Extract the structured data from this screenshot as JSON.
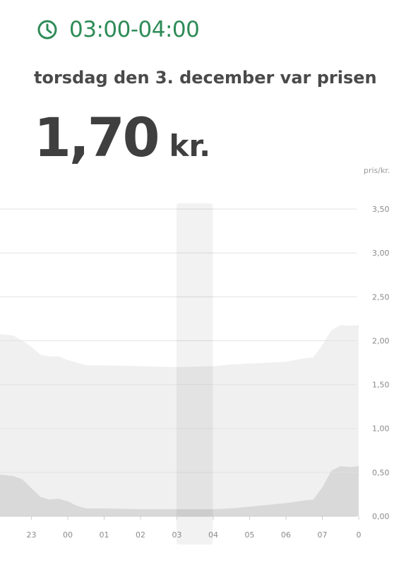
{
  "header": {
    "time_range": "03:00-04:00",
    "date_text": "torsdag den 3. december var prisen",
    "price_value": "1,70",
    "price_unit": "kr.",
    "accent_color": "#2e8b57",
    "icon": "clock-icon"
  },
  "chart_data": {
    "type": "area",
    "ylabel": "pris/kr.",
    "ylim": [
      0,
      3.5
    ],
    "y_ticks": [
      "0,00",
      "0,50",
      "1,00",
      "1,50",
      "2,00",
      "2,50",
      "3,00",
      "3,50"
    ],
    "x_ticks": [
      "23",
      "00",
      "01",
      "02",
      "03",
      "04",
      "05",
      "06",
      "07",
      "0"
    ],
    "highlighted_hour": "03",
    "grid": true,
    "series": [
      {
        "color": "#f0f0f0",
        "points": [
          [
            22.0,
            2.08
          ],
          [
            22.5,
            2.06
          ],
          [
            22.75,
            2.0
          ],
          [
            23.0,
            1.93
          ],
          [
            23.25,
            1.84
          ],
          [
            23.5,
            1.82
          ],
          [
            23.75,
            1.82
          ],
          [
            24.0,
            1.78
          ],
          [
            24.25,
            1.75
          ],
          [
            24.5,
            1.72
          ],
          [
            25.0,
            1.72
          ],
          [
            26.0,
            1.71
          ],
          [
            27.0,
            1.7
          ],
          [
            28.0,
            1.71
          ],
          [
            28.5,
            1.73
          ],
          [
            29.0,
            1.74
          ],
          [
            29.5,
            1.75
          ],
          [
            30.0,
            1.76
          ],
          [
            30.5,
            1.8
          ],
          [
            30.75,
            1.81
          ],
          [
            31.0,
            1.95
          ],
          [
            31.25,
            2.12
          ],
          [
            31.5,
            2.18
          ],
          [
            31.75,
            2.17
          ],
          [
            32.0,
            2.18
          ]
        ]
      },
      {
        "color": "#d9d9d9",
        "points": [
          [
            22.0,
            0.48
          ],
          [
            22.25,
            0.47
          ],
          [
            22.5,
            0.46
          ],
          [
            22.75,
            0.42
          ],
          [
            23.0,
            0.32
          ],
          [
            23.25,
            0.22
          ],
          [
            23.5,
            0.19
          ],
          [
            23.75,
            0.2
          ],
          [
            24.0,
            0.17
          ],
          [
            24.25,
            0.12
          ],
          [
            24.5,
            0.09
          ],
          [
            24.75,
            0.09
          ],
          [
            25.0,
            0.09
          ],
          [
            26.0,
            0.08
          ],
          [
            27.0,
            0.08
          ],
          [
            28.0,
            0.08
          ],
          [
            28.5,
            0.09
          ],
          [
            29.0,
            0.11
          ],
          [
            29.5,
            0.13
          ],
          [
            30.0,
            0.15
          ],
          [
            30.5,
            0.18
          ],
          [
            30.75,
            0.19
          ],
          [
            31.0,
            0.33
          ],
          [
            31.25,
            0.52
          ],
          [
            31.5,
            0.57
          ],
          [
            31.75,
            0.56
          ],
          [
            32.0,
            0.57
          ]
        ]
      }
    ]
  }
}
